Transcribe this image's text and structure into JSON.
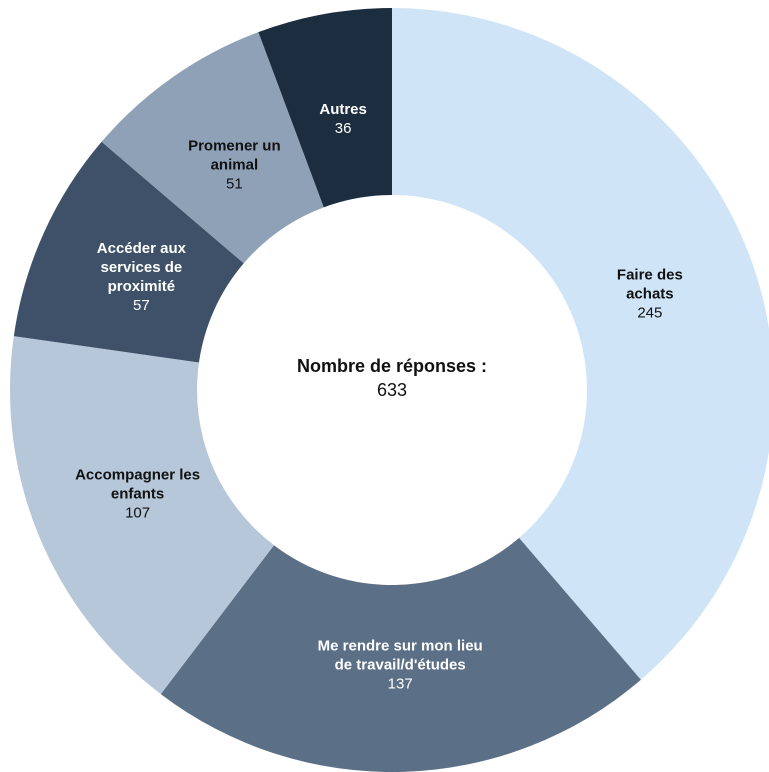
{
  "chart_data": {
    "type": "donut",
    "categories": [
      "Faire des achats",
      "Me rendre sur mon lieu de travail/d'études",
      "Accompagner les enfants",
      "Accéder aux services de proximité",
      "Promener un animal",
      "Autres"
    ],
    "values": [
      245,
      137,
      107,
      57,
      51,
      36
    ],
    "colors": [
      "#cfe5f7",
      "#5b6f86",
      "#b5c7d9",
      "#3e5168",
      "#8ea1b7",
      "#1d2d40"
    ],
    "center_label": "Nombre de réponses :",
    "center_value": 633
  }
}
